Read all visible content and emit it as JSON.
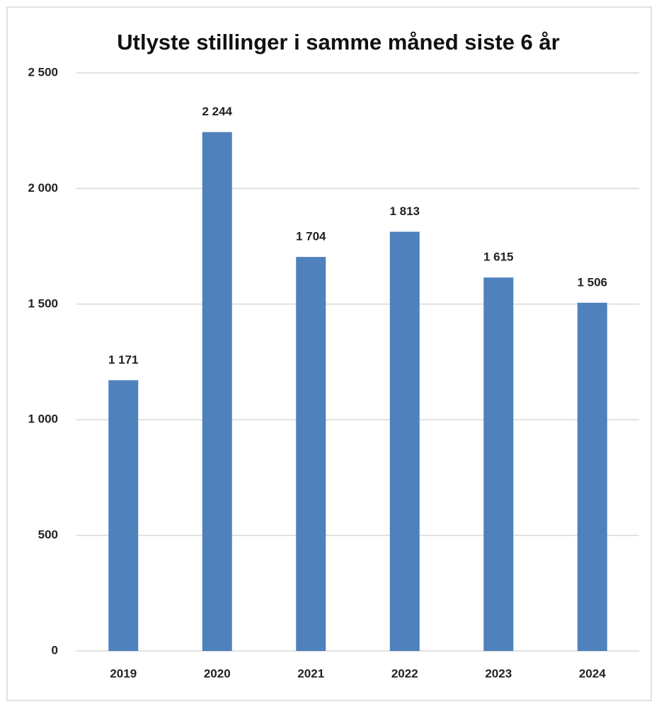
{
  "chart_data": {
    "type": "bar",
    "title": "Utlyste stillinger i samme måned siste 6 år",
    "categories": [
      "2019",
      "2020",
      "2021",
      "2022",
      "2023",
      "2024"
    ],
    "values": [
      1171,
      2244,
      1704,
      1813,
      1615,
      1506
    ],
    "value_labels": [
      "1 171",
      "2 244",
      "1 704",
      "1 813",
      "1 615",
      "1 506"
    ],
    "color": "#4f81bd",
    "ylim": [
      0,
      2500
    ],
    "yticks": [
      0,
      500,
      {
        "value": 1000,
        "label": "1 000"
      },
      {
        "value": 1500,
        "label": "1 500"
      },
      {
        "value": 2000,
        "label": "2 000"
      },
      {
        "value": 2500,
        "label": "2 500"
      }
    ],
    "grid": true
  }
}
